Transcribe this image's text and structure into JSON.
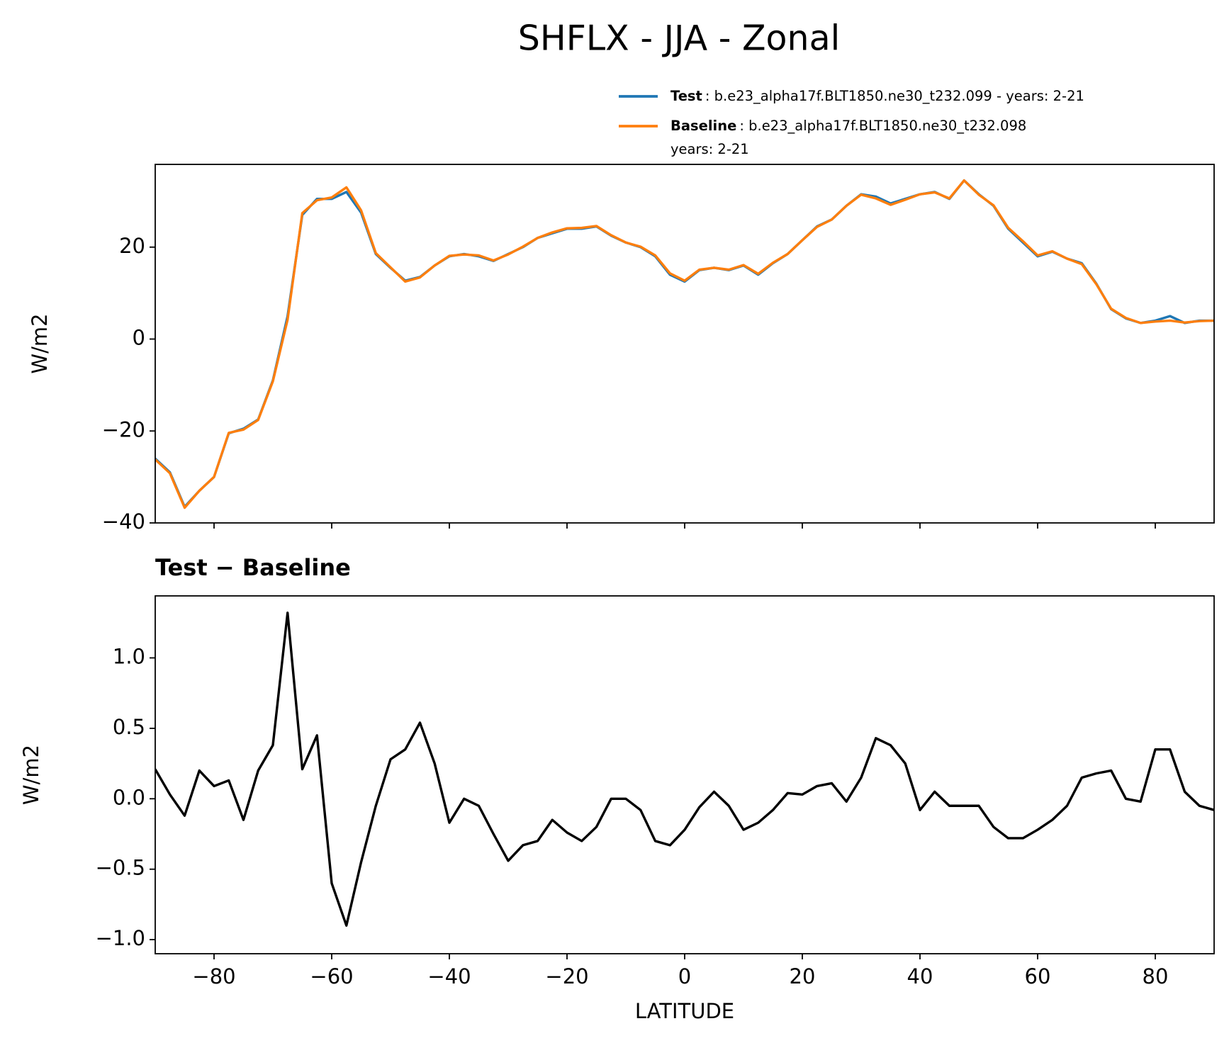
{
  "chart_data": [
    {
      "type": "line",
      "title": "SHFLX - JJA - Zonal",
      "ylabel": "W/m2",
      "x": [
        -90,
        -87.5,
        -85,
        -82.5,
        -80,
        -77.5,
        -75,
        -72.5,
        -70,
        -67.5,
        -65,
        -62.5,
        -60,
        -57.5,
        -55,
        -52.5,
        -50,
        -47.5,
        -45,
        -42.5,
        -40,
        -37.5,
        -35,
        -32.5,
        -30,
        -27.5,
        -25,
        -22.5,
        -20,
        -17.5,
        -15,
        -12.5,
        -10,
        -7.5,
        -5,
        -2.5,
        0,
        2.5,
        5,
        7.5,
        10,
        12.5,
        15,
        17.5,
        20,
        22.5,
        25,
        27.5,
        30,
        32.5,
        35,
        37.5,
        40,
        42.5,
        45,
        47.5,
        50,
        52.5,
        55,
        57.5,
        60,
        62.5,
        65,
        67.5,
        70,
        72.5,
        75,
        77.5,
        80,
        82.5,
        85,
        87.5,
        90
      ],
      "series": [
        {
          "name": "Test",
          "description": [
            ": b.e23_alpha17f.BLT1850.ne30_t232.099 - years: 2-21"
          ],
          "color": "#1f77b4",
          "values": [
            -26,
            -29,
            -36.5,
            -33,
            -30,
            -20.5,
            -19.5,
            -17.5,
            -9,
            5,
            27,
            30.5,
            30.5,
            32,
            27.5,
            18.5,
            15.5,
            12.7,
            13.5,
            16,
            18,
            18.5,
            18,
            17,
            18.5,
            20,
            22,
            23,
            24,
            24,
            24.5,
            22.5,
            21,
            20,
            18,
            14,
            12.5,
            15,
            15.5,
            15,
            16,
            14,
            16.5,
            18.5,
            21.5,
            24.5,
            26,
            29,
            31.5,
            31,
            29.5,
            30.5,
            31.5,
            32,
            30.5,
            34.5,
            31.5,
            29,
            24,
            21,
            18,
            19,
            17.5,
            16.5,
            12,
            6.5,
            4.5,
            3.5,
            4,
            5,
            3.5,
            4,
            4
          ]
        },
        {
          "name": "Baseline",
          "description": [
            ": b.e23_alpha17f.BLT1850.ne30_t232.098",
            "years: 2-21"
          ],
          "color": "#ff7f0e",
          "values": [
            -26.2,
            -29.2,
            -36.7,
            -33,
            -30,
            -20.4,
            -19.7,
            -17.6,
            -9.2,
            4.2,
            27.4,
            30.2,
            30.8,
            33,
            28,
            18.7,
            15.6,
            12.5,
            13.4,
            16,
            18.1,
            18.4,
            18.2,
            17.1,
            18.4,
            20.1,
            22,
            23.2,
            24.1,
            24.2,
            24.6,
            22.6,
            21,
            20.1,
            18.2,
            14.3,
            12.7,
            15.1,
            15.5,
            15.1,
            16.1,
            14.2,
            16.6,
            18.5,
            21.5,
            24.4,
            26,
            29,
            31.4,
            30.6,
            29.2,
            30.3,
            31.5,
            31.9,
            30.6,
            34.5,
            31.4,
            29.1,
            24.2,
            21.3,
            18.2,
            19.1,
            17.5,
            16.3,
            11.9,
            6.6,
            4.6,
            3.5,
            3.8,
            4,
            3.6,
            3.9,
            4
          ]
        }
      ],
      "xlim": [
        -90,
        90
      ],
      "ylim": [
        -40,
        38
      ],
      "yticks": [
        {
          "value": -40,
          "label": "−40"
        },
        {
          "value": -20,
          "label": "−20"
        },
        0,
        20
      ]
    },
    {
      "type": "line",
      "title": "Test − Baseline",
      "ylabel": "W/m2",
      "xlabel": "LATITUDE",
      "x": [
        -90,
        -87.5,
        -85,
        -82.5,
        -80,
        -77.5,
        -75,
        -72.5,
        -70,
        -67.5,
        -65,
        -62.5,
        -60,
        -57.5,
        -55,
        -52.5,
        -50,
        -47.5,
        -45,
        -42.5,
        -40,
        -37.5,
        -35,
        -32.5,
        -30,
        -27.5,
        -25,
        -22.5,
        -20,
        -17.5,
        -15,
        -12.5,
        -10,
        -7.5,
        -5,
        -2.5,
        0,
        2.5,
        5,
        7.5,
        10,
        12.5,
        15,
        17.5,
        20,
        22.5,
        25,
        27.5,
        30,
        32.5,
        35,
        37.5,
        40,
        42.5,
        45,
        47.5,
        50,
        52.5,
        55,
        57.5,
        60,
        62.5,
        65,
        67.5,
        70,
        72.5,
        75,
        77.5,
        80,
        82.5,
        85,
        87.5,
        90
      ],
      "series": [
        {
          "color": "#000000",
          "values": [
            0.21,
            0.03,
            -0.12,
            0.2,
            0.09,
            0.13,
            -0.15,
            0.2,
            0.38,
            1.32,
            0.21,
            0.45,
            -0.6,
            -0.9,
            -0.45,
            -0.05,
            0.28,
            0.35,
            0.54,
            0.25,
            -0.17,
            0,
            -0.05,
            -0.25,
            -0.44,
            -0.33,
            -0.3,
            -0.15,
            -0.24,
            -0.3,
            -0.2,
            0,
            0,
            -0.08,
            -0.3,
            -0.33,
            -0.22,
            -0.06,
            0.05,
            -0.05,
            -0.22,
            -0.17,
            -0.08,
            0.04,
            0.03,
            0.09,
            0.11,
            -0.02,
            0.15,
            0.43,
            0.38,
            0.25,
            -0.08,
            0.05,
            -0.05,
            -0.05,
            -0.05,
            -0.2,
            -0.28,
            -0.28,
            -0.22,
            -0.15,
            -0.05,
            0.15,
            0.18,
            0.2,
            0,
            -0.02,
            0.35,
            0.35,
            0.05,
            -0.05,
            -0.08
          ]
        }
      ],
      "xlim": [
        -90,
        90
      ],
      "ylim": [
        -1.1,
        1.44
      ],
      "xticks": [
        {
          "value": -80,
          "label": "−80"
        },
        {
          "value": -60,
          "label": "−60"
        },
        {
          "value": -40,
          "label": "−40"
        },
        {
          "value": -20,
          "label": "−20"
        },
        0,
        20,
        40,
        60,
        80
      ],
      "yticks": [
        {
          "value": -1.0,
          "label": "−1.0"
        },
        {
          "value": -0.5,
          "label": "−0.5"
        },
        {
          "value": 0,
          "label": "0.0"
        },
        {
          "value": 0.5,
          "label": "0.5"
        },
        {
          "value": 1.0,
          "label": "1.0"
        }
      ]
    }
  ]
}
